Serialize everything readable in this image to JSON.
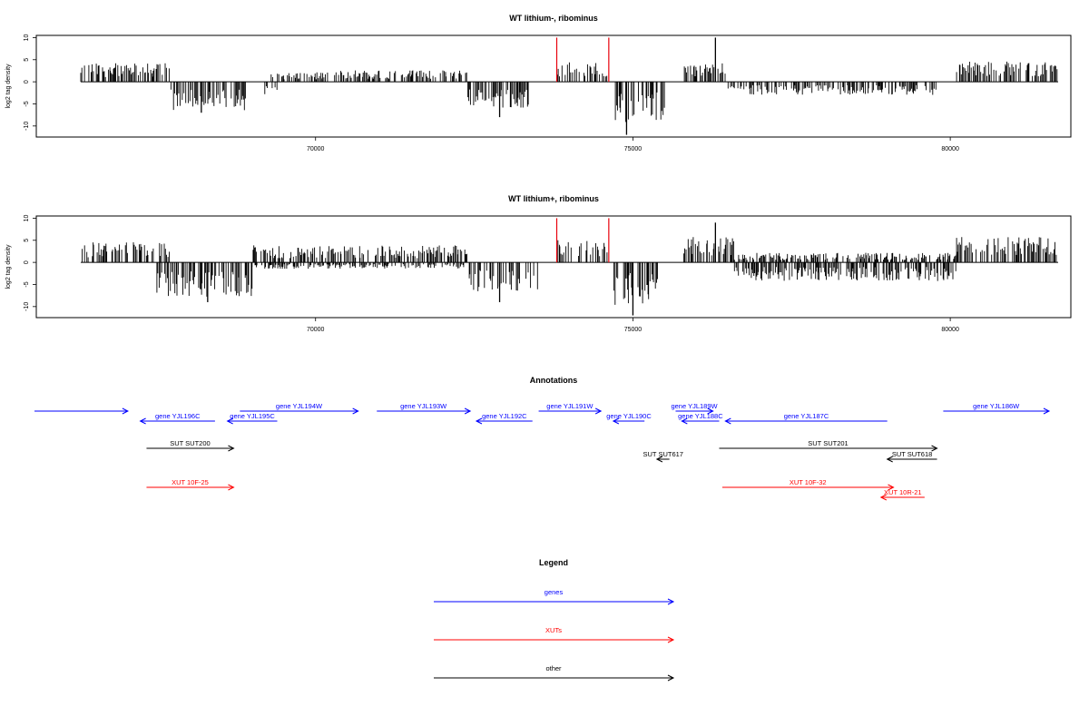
{
  "chart_data": [
    {
      "type": "bar",
      "title": "WT lithium-, ribominus",
      "ylabel": "log2 tag density",
      "xlim": [
        65600,
        81900
      ],
      "ylim": [
        -12.5,
        10.5
      ],
      "yticks": [
        10,
        5,
        0,
        -5,
        -10
      ],
      "xticks": [
        70000,
        75000,
        80000
      ],
      "highlight_color": "#e8000b",
      "bar_color": "#000000",
      "segments": [
        {
          "start": 66300,
          "end": 67700,
          "side": "up",
          "amp": 3.5
        },
        {
          "start": 67700,
          "end": 68900,
          "side": "down",
          "amp": 5.5
        },
        {
          "start": 69200,
          "end": 69400,
          "side": "down",
          "amp": 2.5
        },
        {
          "start": 69300,
          "end": 70200,
          "side": "up",
          "amp": 1.8
        },
        {
          "start": 70300,
          "end": 72400,
          "side": "up",
          "amp": 2.2
        },
        {
          "start": 72400,
          "end": 73400,
          "side": "down",
          "amp": 5.0
        },
        {
          "start": 73800,
          "end": 74600,
          "side": "up",
          "amp": 3.8
        },
        {
          "start": 74700,
          "end": 75500,
          "side": "down",
          "amp": 8.0
        },
        {
          "start": 75800,
          "end": 76500,
          "side": "up",
          "amp": 3.5
        },
        {
          "start": 76500,
          "end": 79800,
          "side": "down",
          "amp": 2.5
        },
        {
          "start": 80100,
          "end": 81700,
          "side": "up",
          "amp": 3.8
        }
      ],
      "peaks": [
        {
          "x": 76300,
          "y": 10
        },
        {
          "x": 74900,
          "y": -12
        },
        {
          "x": 72900,
          "y": -8
        },
        {
          "x": 68200,
          "y": -7
        }
      ],
      "highlights": [
        {
          "x": 73800,
          "y": 10
        },
        {
          "x": 74620,
          "y": 10
        }
      ]
    },
    {
      "type": "bar",
      "title": "WT lithium+, ribominus",
      "ylabel": "log2 tag density",
      "xlim": [
        65600,
        81900
      ],
      "ylim": [
        -12.5,
        10.5
      ],
      "yticks": [
        10,
        5,
        0,
        -5,
        -10
      ],
      "xticks": [
        70000,
        75000,
        80000
      ],
      "highlight_color": "#e8000b",
      "bar_color": "#000000",
      "segments": [
        {
          "start": 66300,
          "end": 67700,
          "side": "up",
          "amp": 3.8
        },
        {
          "start": 67500,
          "end": 69000,
          "side": "down",
          "amp": 6.5
        },
        {
          "start": 69000,
          "end": 72400,
          "side": "up",
          "amp": 3.2
        },
        {
          "start": 69000,
          "end": 72400,
          "side": "down",
          "amp": 1.2
        },
        {
          "start": 72400,
          "end": 73500,
          "side": "down",
          "amp": 5.5
        },
        {
          "start": 73800,
          "end": 74600,
          "side": "up",
          "amp": 4.5
        },
        {
          "start": 74700,
          "end": 75400,
          "side": "down",
          "amp": 8.0
        },
        {
          "start": 75800,
          "end": 76600,
          "side": "up",
          "amp": 5.0
        },
        {
          "start": 76600,
          "end": 80100,
          "side": "down",
          "amp": 3.5
        },
        {
          "start": 76600,
          "end": 80100,
          "side": "up",
          "amp": 1.8
        },
        {
          "start": 80100,
          "end": 81700,
          "side": "up",
          "amp": 4.8
        }
      ],
      "peaks": [
        {
          "x": 76300,
          "y": 9
        },
        {
          "x": 75000,
          "y": -12
        },
        {
          "x": 68300,
          "y": -9
        },
        {
          "x": 72900,
          "y": -9
        }
      ],
      "highlights": [
        {
          "x": 73800,
          "y": 10
        },
        {
          "x": 74620,
          "y": 10
        }
      ]
    }
  ],
  "annotations": {
    "title": "Annotations",
    "xlim": [
      65600,
      81900
    ],
    "colors": {
      "gene": "#0000ff",
      "xut": "#ff0000",
      "other": "#000000"
    },
    "features": [
      {
        "label": "",
        "type": "gene",
        "strand": "+",
        "start": 65600,
        "end": 67100,
        "row": 0
      },
      {
        "label": "gene YJL196C",
        "type": "gene",
        "strand": "-",
        "start": 67300,
        "end": 68500,
        "row": 1
      },
      {
        "label": "gene YJL195C",
        "type": "gene",
        "strand": "-",
        "start": 68700,
        "end": 69500,
        "row": 1
      },
      {
        "label": "gene YJL194W",
        "type": "gene",
        "strand": "+",
        "start": 68900,
        "end": 70800,
        "row": 0
      },
      {
        "label": "gene YJL193W",
        "type": "gene",
        "strand": "+",
        "start": 71100,
        "end": 72600,
        "row": 0
      },
      {
        "label": "gene YJL192C",
        "type": "gene",
        "strand": "-",
        "start": 72700,
        "end": 73600,
        "row": 1
      },
      {
        "label": "gene YJL191W",
        "type": "gene",
        "strand": "+",
        "start": 73700,
        "end": 74700,
        "row": 0
      },
      {
        "label": "gene YJL190C",
        "type": "gene",
        "strand": "-",
        "start": 74900,
        "end": 75400,
        "row": 1
      },
      {
        "label": "gene YJL189W",
        "type": "gene",
        "strand": "+",
        "start": 75900,
        "end": 76500,
        "row": 0
      },
      {
        "label": "gene YJL188C",
        "type": "gene",
        "strand": "-",
        "start": 76000,
        "end": 76600,
        "row": 1
      },
      {
        "label": "gene YJL187C",
        "type": "gene",
        "strand": "-",
        "start": 76700,
        "end": 79300,
        "row": 1
      },
      {
        "label": "gene YJL186W",
        "type": "gene",
        "strand": "+",
        "start": 80200,
        "end": 81900,
        "row": 0
      },
      {
        "label": "SUT SUT200",
        "type": "other",
        "strand": "+",
        "start": 67400,
        "end": 68800,
        "row": 2
      },
      {
        "label": "SUT SUT617",
        "type": "other",
        "strand": "-",
        "start": 75600,
        "end": 75800,
        "row": 3
      },
      {
        "label": "SUT SUT201",
        "type": "other",
        "strand": "+",
        "start": 76600,
        "end": 80100,
        "row": 2
      },
      {
        "label": "SUT SUT618",
        "type": "other",
        "strand": "-",
        "start": 79300,
        "end": 80100,
        "row": 3
      },
      {
        "label": "XUT 10F-25",
        "type": "xut",
        "strand": "+",
        "start": 67400,
        "end": 68800,
        "row": 4
      },
      {
        "label": "XUT 10F-32",
        "type": "xut",
        "strand": "+",
        "start": 76650,
        "end": 79400,
        "row": 4
      },
      {
        "label": "XUT 10R-21",
        "type": "xut",
        "strand": "-",
        "start": 79200,
        "end": 79900,
        "row": 5
      }
    ]
  },
  "legend": {
    "title": "Legend",
    "items": [
      {
        "label": "genes",
        "color": "#0000ff"
      },
      {
        "label": "XUTs",
        "color": "#ff0000"
      },
      {
        "label": "other",
        "color": "#000000"
      }
    ]
  }
}
